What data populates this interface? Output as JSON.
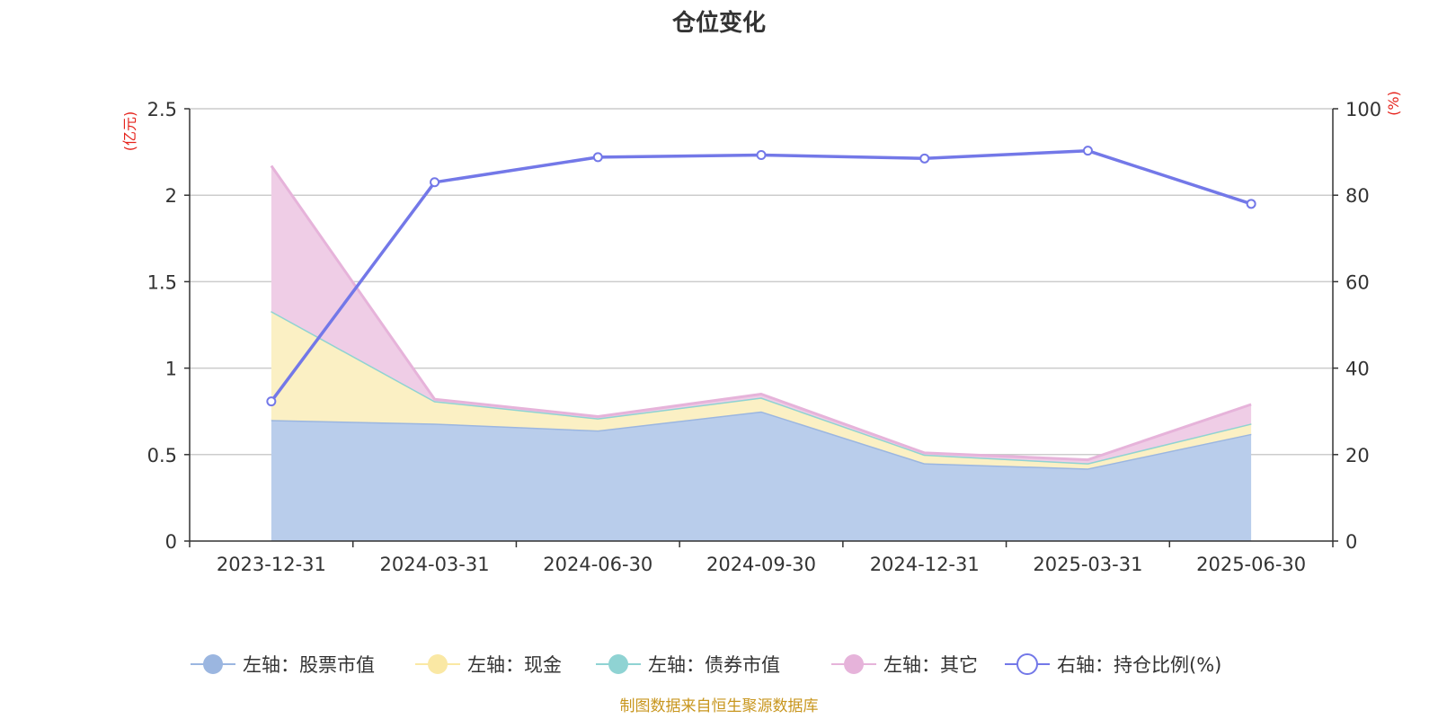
{
  "chart_data": {
    "type": "area",
    "title": "仓位变化",
    "left_unit": "(亿元)",
    "right_unit": "(%)",
    "categories": [
      "2023-12-31",
      "2024-03-31",
      "2024-06-30",
      "2024-09-30",
      "2024-12-31",
      "2025-03-31",
      "2025-06-30"
    ],
    "y_left": {
      "min": 0,
      "max": 2.5,
      "ticks": [
        "0",
        "0.5",
        "1",
        "1.5",
        "2",
        "2.5"
      ]
    },
    "y_right": {
      "min": 0,
      "max": 100,
      "ticks": [
        "0",
        "20",
        "40",
        "60",
        "80",
        "100"
      ]
    },
    "grid": true,
    "legend_position": "bottom",
    "series": [
      {
        "name": "左轴：股票市值",
        "axis": "left",
        "kind": "area",
        "color": "#9bb6e0",
        "fill": "#b9cdeb",
        "values": [
          0.7,
          0.68,
          0.64,
          0.75,
          0.45,
          0.42,
          0.62
        ]
      },
      {
        "name": "左轴：现金",
        "axis": "left",
        "kind": "area",
        "color": "#fae8a4",
        "fill": "#fbf0c4",
        "values": [
          0.63,
          0.13,
          0.07,
          0.08,
          0.05,
          0.03,
          0.06
        ]
      },
      {
        "name": "左轴：债券市值",
        "axis": "left",
        "kind": "area",
        "color": "#8fd3d3",
        "fill": "#b5e4e4",
        "values": [
          0,
          0,
          0,
          0,
          0,
          0,
          0
        ]
      },
      {
        "name": "左轴：其它",
        "axis": "left",
        "kind": "area",
        "color": "#e6b3da",
        "fill": "#efcde6",
        "values": [
          0.84,
          0.01,
          0.01,
          0.02,
          0.01,
          0.02,
          0.11
        ]
      },
      {
        "name": "右轴：持仓比例(%)",
        "axis": "right",
        "kind": "line",
        "color": "#7378e8",
        "values": [
          32.3,
          83.0,
          88.8,
          89.3,
          88.5,
          90.3,
          78.0
        ]
      }
    ],
    "source": "制图数据来自恒生聚源数据库"
  }
}
